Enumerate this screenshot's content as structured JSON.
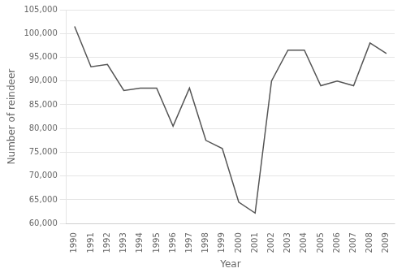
{
  "chart_data": {
    "type": "line",
    "x": [
      1990,
      1991,
      1992,
      1993,
      1994,
      1995,
      1996,
      1997,
      1998,
      1999,
      2000,
      2001,
      2002,
      2003,
      2004,
      2005,
      2006,
      2007,
      2008,
      2009
    ],
    "values": [
      101500,
      93000,
      93500,
      88000,
      88500,
      88500,
      80500,
      88500,
      77500,
      75800,
      64500,
      62200,
      90000,
      96500,
      96500,
      89000,
      90000,
      89000,
      98000,
      95800
    ],
    "color": "#555555",
    "xlabel": "Year",
    "ylabel": "Number of reindeer",
    "xlim": [
      1989.5,
      2009.5
    ],
    "xticks": [
      1990,
      1991,
      1992,
      1993,
      1994,
      1995,
      1996,
      1997,
      1998,
      1999,
      2000,
      2001,
      2002,
      2003,
      2004,
      2005,
      2006,
      2007,
      2008,
      2009
    ],
    "ylim": [
      60000,
      105000
    ],
    "yticks": [
      {
        "value": 60000,
        "label": "60,000"
      },
      {
        "value": 65000,
        "label": "65,000"
      },
      {
        "value": 70000,
        "label": "70,000"
      },
      {
        "value": 75000,
        "label": "75,000"
      },
      {
        "value": 80000,
        "label": "80,000"
      },
      {
        "value": 85000,
        "label": "85,000"
      },
      {
        "value": 90000,
        "label": "90,000"
      },
      {
        "value": 95000,
        "label": "95,000"
      },
      {
        "value": 100000,
        "label": "100,000"
      },
      {
        "value": 105000,
        "label": "105,000"
      }
    ],
    "grid": "y"
  }
}
